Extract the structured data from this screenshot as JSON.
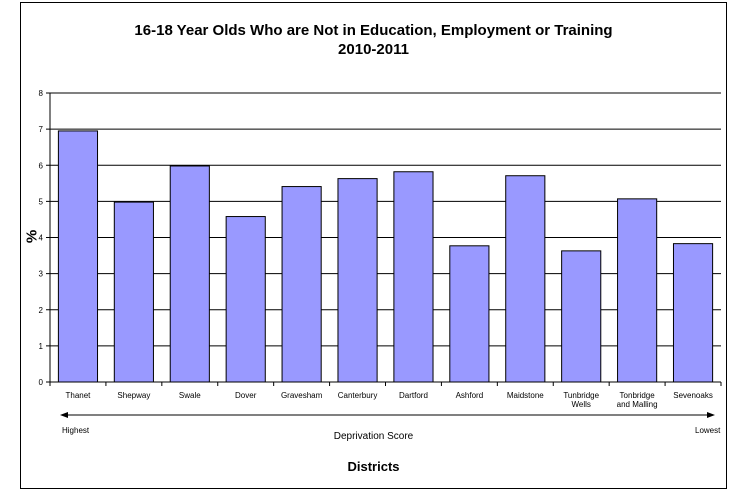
{
  "chart_data": {
    "type": "bar",
    "title": [
      "16-18 Year Olds Who are Not in Education, Employment or Training",
      "2010-2011"
    ],
    "categories": [
      "Thanet",
      "Shepway",
      "Swale",
      "Dover",
      "Gravesham",
      "Canterbury",
      "Dartford",
      "Ashford",
      "Maidstone",
      "Tunbridge Wells",
      "Tonbridge and Malling",
      "Sevenoaks"
    ],
    "category_lines": [
      [
        "Thanet"
      ],
      [
        "Shepway"
      ],
      [
        "Swale"
      ],
      [
        "Dover"
      ],
      [
        "Gravesham"
      ],
      [
        "Canterbury"
      ],
      [
        "Dartford"
      ],
      [
        "Ashford"
      ],
      [
        "Maidstone"
      ],
      [
        "Tunbridge",
        "Wells"
      ],
      [
        "Tonbridge",
        "and Malling"
      ],
      [
        "Sevenoaks"
      ]
    ],
    "values": [
      6.95,
      4.98,
      5.98,
      4.58,
      5.41,
      5.63,
      5.82,
      3.77,
      5.71,
      3.63,
      5.07,
      3.83
    ],
    "ylabel": "%",
    "xlabel": "Districts",
    "ylim": [
      0,
      8
    ],
    "yticks": [
      0,
      1,
      2,
      3,
      4,
      5,
      6,
      7,
      8
    ],
    "grid": true,
    "legend": "none",
    "bar_color": "#9999ff",
    "annotations": {
      "arrow_label": "Deprivation Score",
      "left_end": "Highest",
      "right_end": "Lowest"
    }
  }
}
